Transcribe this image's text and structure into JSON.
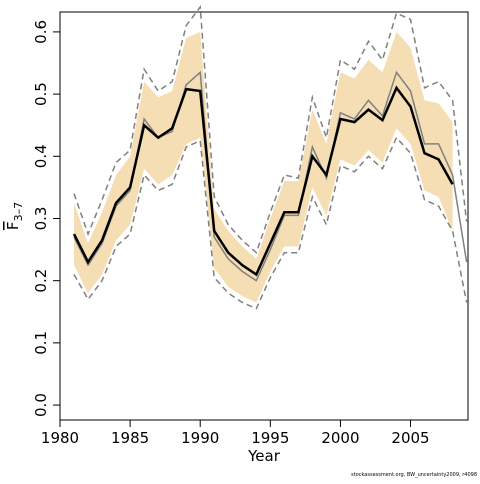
{
  "chart_data": {
    "type": "line",
    "xlabel": "Year",
    "ylabel": {
      "main": "F",
      "sub": "3–7"
    },
    "footnote": "stockassessment.org, BW_uncertainty2009, r4098",
    "x": [
      1981,
      1982,
      1983,
      1984,
      1985,
      1986,
      1987,
      1988,
      1989,
      1990,
      1991,
      1992,
      1993,
      1994,
      1995,
      1996,
      1997,
      1998,
      1999,
      2000,
      2001,
      2002,
      2003,
      2004,
      2005,
      2006,
      2007,
      2008,
      2009
    ],
    "band": {
      "color": "#f5deb3",
      "upper": [
        0.325,
        0.26,
        0.31,
        0.37,
        0.4,
        0.52,
        0.495,
        0.505,
        0.59,
        0.6,
        0.315,
        0.28,
        0.255,
        0.235,
        0.3,
        0.36,
        0.36,
        0.475,
        0.42,
        0.535,
        0.525,
        0.555,
        0.535,
        0.6,
        0.575,
        0.49,
        0.485,
        0.455,
        null
      ],
      "lower": [
        0.225,
        0.18,
        0.21,
        0.265,
        0.29,
        0.38,
        0.355,
        0.37,
        0.42,
        0.43,
        0.22,
        0.19,
        0.175,
        0.165,
        0.215,
        0.255,
        0.255,
        0.35,
        0.305,
        0.395,
        0.385,
        0.41,
        0.39,
        0.445,
        0.42,
        0.345,
        0.335,
        0.28,
        null
      ]
    },
    "series": [
      {
        "color": "#808080",
        "dash": true,
        "width": 1.5,
        "values": [
          0.34,
          0.275,
          0.33,
          0.39,
          0.41,
          0.54,
          0.505,
          0.52,
          0.61,
          0.64,
          0.335,
          0.29,
          0.265,
          0.245,
          0.31,
          0.37,
          0.365,
          0.495,
          0.43,
          0.555,
          0.54,
          0.585,
          0.555,
          0.63,
          0.62,
          0.51,
          0.52,
          0.49,
          0.295
        ]
      },
      {
        "color": "#808080",
        "dash": true,
        "width": 1.5,
        "values": [
          0.21,
          0.17,
          0.2,
          0.255,
          0.275,
          0.37,
          0.345,
          0.355,
          0.415,
          0.425,
          0.205,
          0.18,
          0.165,
          0.155,
          0.205,
          0.245,
          0.245,
          0.335,
          0.29,
          0.385,
          0.375,
          0.4,
          0.38,
          0.43,
          0.405,
          0.33,
          0.32,
          0.28,
          0.165
        ]
      },
      {
        "color": "#808080",
        "dash": false,
        "width": 1.5,
        "values": [
          0.27,
          0.225,
          0.26,
          0.32,
          0.345,
          0.46,
          0.43,
          0.44,
          0.515,
          0.535,
          0.27,
          0.235,
          0.215,
          0.2,
          0.25,
          0.305,
          0.305,
          0.415,
          0.365,
          0.47,
          0.46,
          0.49,
          0.465,
          0.535,
          0.505,
          0.42,
          0.42,
          0.37,
          0.23
        ]
      },
      {
        "color": "#000000",
        "dash": false,
        "width": 2.5,
        "values": [
          0.275,
          0.23,
          0.265,
          0.325,
          0.35,
          0.45,
          0.43,
          0.445,
          0.508,
          0.505,
          0.28,
          0.245,
          0.225,
          0.21,
          0.26,
          0.31,
          0.31,
          0.4,
          0.37,
          0.46,
          0.455,
          0.475,
          0.458,
          0.51,
          0.48,
          0.405,
          0.395,
          0.355,
          null
        ]
      }
    ],
    "xlim": [
      1980,
      2009.1
    ],
    "ylim": [
      -0.024,
      0.632
    ],
    "xticks": [
      1980,
      1985,
      1990,
      1995,
      2000,
      2005
    ],
    "yticks": [
      {
        "value": 0,
        "label": "0.0"
      },
      0.1,
      0.2,
      0.3,
      0.4,
      0.5,
      0.6
    ]
  }
}
